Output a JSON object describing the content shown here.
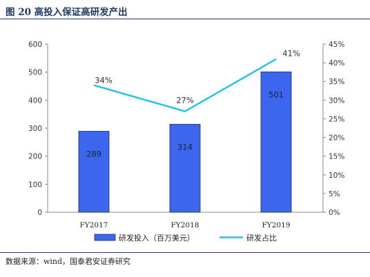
{
  "figure": {
    "title": "图 20 高投入保证高研发产出",
    "source": "数据来源：wind，国泰君安证券研究"
  },
  "chart_data": {
    "type": "bar",
    "categories": [
      "FY2017",
      "FY2018",
      "FY2019"
    ],
    "series": [
      {
        "name": "研发投入（百万美元）",
        "type": "bar",
        "axis": "left",
        "values": [
          289,
          314,
          501
        ],
        "labels": [
          "289",
          "314",
          "501"
        ],
        "color": "#3d66ee"
      },
      {
        "name": "研发占比",
        "type": "line",
        "axis": "right",
        "values": [
          34,
          27,
          41
        ],
        "labels": [
          "34%",
          "27%",
          "41%"
        ],
        "color": "#1fc4e6"
      }
    ],
    "y_left": {
      "min": 0,
      "max": 600,
      "ticks": [
        "0",
        "100",
        "200",
        "300",
        "400",
        "500",
        "600"
      ]
    },
    "y_right": {
      "min": 0,
      "max": 45,
      "ticks": [
        "0%",
        "5%",
        "10%",
        "15%",
        "20%",
        "25%",
        "30%",
        "35%",
        "40%",
        "45%"
      ]
    },
    "grid": false,
    "legend": "bottom"
  }
}
